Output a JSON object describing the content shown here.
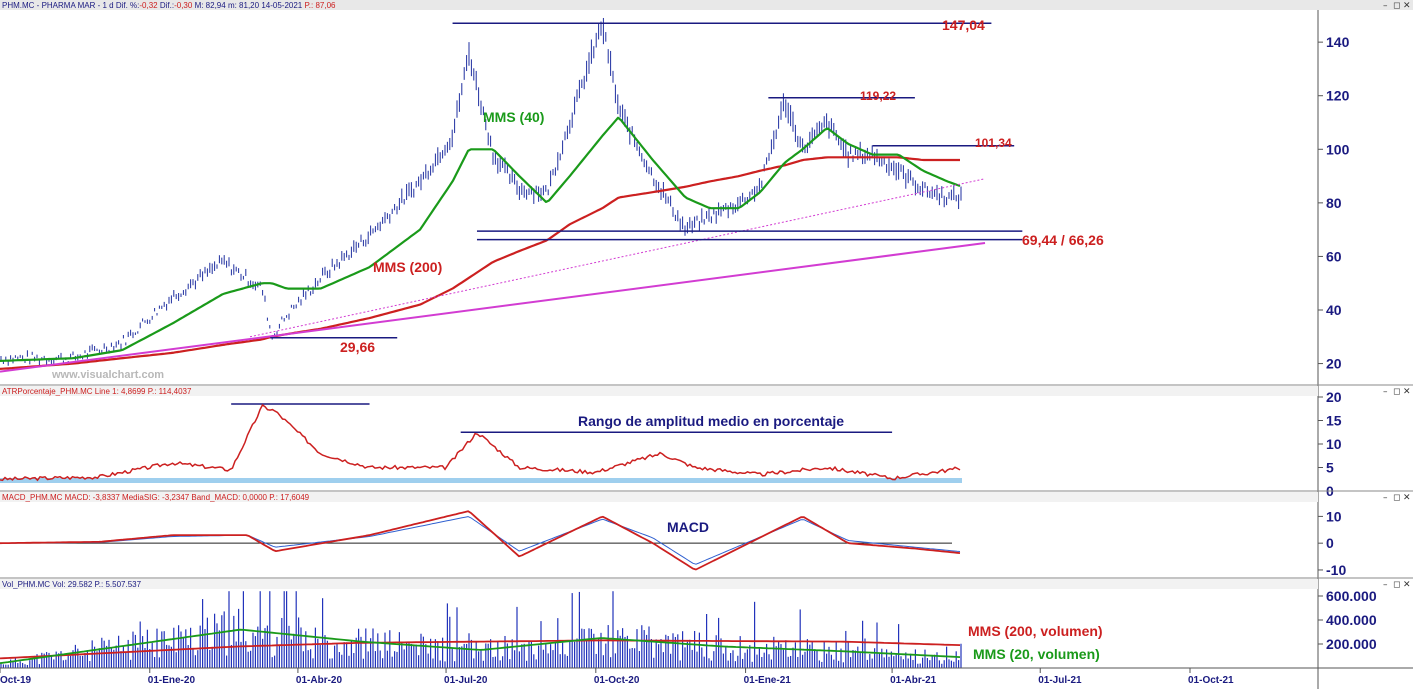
{
  "panels": {
    "price": {
      "header": {
        "symbol": "PHM.MC",
        "name": "PHARMA MAR",
        "period": "1 d",
        "dif_pct_label": "Dif. %:",
        "dif_pct": "-0,32",
        "dif_label": "Dif.:",
        "dif": "-0,30",
        "max": "M: 82,94",
        "min": "m: 81,20",
        "date": "14-05-2021",
        "last": "P.: 87,06"
      },
      "watermark": "www.visualchart.com",
      "annotations": {
        "ma40": "MMS (40)",
        "ma200": "MMS (200)",
        "high_1": "147,04",
        "high_2": "119,22",
        "high_3": "101,34",
        "low_1": "29,66",
        "support": "69,44 / 66,26"
      },
      "y_ticks": [
        "140",
        "120",
        "100",
        "80",
        "60",
        "40",
        "20"
      ]
    },
    "atr": {
      "header": "ATRPorcentaje_PHM.MC Line 1: 4,8699 P.: 114,4037",
      "annotation": "Rango de amplitud medio en porcentaje",
      "y_ticks": [
        "20",
        "15",
        "10",
        "5",
        "0"
      ]
    },
    "macd": {
      "header": "MACD_PHM.MC MACD: -3,8337 MediaSIG: -3,2347 Band_MACD: 0,0000 P.: 17,6049",
      "annotation": "MACD",
      "y_ticks": [
        "10",
        "0",
        "-10"
      ]
    },
    "volume": {
      "header": "Vol_PHM.MC Vol: 29.582 P.: 5.507.537",
      "annotations": {
        "ma200": "MMS (200, volumen)",
        "ma20": "MMS (20, volumen)"
      },
      "y_ticks": [
        "600.000",
        "400.000",
        "200.000"
      ]
    }
  },
  "x_labels": [
    "Oct-19",
    "01-Ene-20",
    "01-Abr-20",
    "01-Jul-20",
    "01-Oct-20",
    "01-Ene-21",
    "01-Abr-21",
    "01-Jul-21",
    "01-Oct-21"
  ],
  "window_controls": [
    "–",
    "◻",
    "✕"
  ],
  "colors": {
    "price_bars": "#1f2fa0",
    "ma40": "#1a9a1a",
    "ma200": "#cc2020",
    "trendline": "#d23cd2",
    "level_line": "#1a1a80",
    "annotation_red": "#cc2020",
    "annotation_green": "#1a9a1a",
    "atr_line": "#cc2020",
    "macd_line": "#cc2020",
    "signal_line": "#3060d0",
    "volume_bars": "#2233bb",
    "axis_text": "#1a1a80"
  },
  "chart_data": [
    {
      "type": "line",
      "panel": "price",
      "title": "PHM.MC - PHARMA MAR - 1 d",
      "ylim": [
        12,
        152
      ],
      "x": [
        "2019-10-01",
        "2019-11-15",
        "2019-12-15",
        "2020-01-15",
        "2020-02-15",
        "2020-03-10",
        "2020-03-16",
        "2020-03-25",
        "2020-04-15",
        "2020-05-15",
        "2020-06-15",
        "2020-07-05",
        "2020-07-15",
        "2020-07-30",
        "2020-08-15",
        "2020-09-01",
        "2020-09-15",
        "2020-10-05",
        "2020-10-15",
        "2020-11-05",
        "2020-11-25",
        "2020-12-10",
        "2020-12-28",
        "2021-01-10",
        "2021-01-25",
        "2021-02-05",
        "2021-02-20",
        "2021-03-05",
        "2021-03-20",
        "2021-04-05",
        "2021-04-20",
        "2021-05-05",
        "2021-05-14"
      ],
      "series": [
        {
          "name": "PHM.MC",
          "values": [
            22,
            22,
            28,
            45,
            58,
            48,
            30,
            38,
            52,
            68,
            88,
            105,
            136,
            98,
            85,
            84,
            110,
            147,
            115,
            90,
            70,
            75,
            80,
            86,
            118,
            100,
            110,
            98,
            98,
            92,
            85,
            82,
            82
          ]
        },
        {
          "name": "MMS (40)",
          "values": [
            21,
            22,
            25,
            35,
            46,
            50,
            50,
            48,
            48,
            56,
            70,
            88,
            100,
            100,
            90,
            80,
            90,
            105,
            112,
            96,
            82,
            78,
            78,
            84,
            95,
            100,
            108,
            102,
            98,
            98,
            92,
            88,
            86
          ]
        },
        {
          "name": "MMS (200)",
          "values": [
            18,
            20,
            22,
            24,
            27,
            29,
            30,
            31,
            33,
            37,
            42,
            48,
            52,
            58,
            62,
            66,
            72,
            78,
            82,
            84,
            86,
            88,
            90,
            92,
            94,
            96,
            97,
            97,
            97,
            97,
            96,
            96,
            96
          ]
        }
      ],
      "levels": [
        147.04,
        119.22,
        101.34,
        69.44,
        66.26,
        29.66
      ]
    },
    {
      "type": "line",
      "panel": "atr",
      "title": "ATRPorcentaje_PHM.MC",
      "ylim": [
        0,
        20
      ],
      "x": [
        "2019-10-01",
        "2019-12-01",
        "2020-01-15",
        "2020-02-20",
        "2020-03-10",
        "2020-03-18",
        "2020-04-15",
        "2020-05-15",
        "2020-07-01",
        "2020-07-20",
        "2020-08-15",
        "2020-10-01",
        "2020-11-10",
        "2020-12-01",
        "2021-01-10",
        "2021-02-20",
        "2021-04-01",
        "2021-05-14"
      ],
      "series": [
        {
          "name": "Line 1",
          "values": [
            2.5,
            3,
            6,
            4.5,
            18,
            17,
            8,
            5,
            5,
            12.5,
            5,
            4,
            8,
            5,
            3.5,
            5,
            2.7,
            4.9
          ]
        }
      ]
    },
    {
      "type": "line",
      "panel": "macd",
      "title": "MACD_PHM.MC",
      "ylim": [
        -13,
        15
      ],
      "x": [
        "2019-10-01",
        "2019-12-01",
        "2020-01-15",
        "2020-03-01",
        "2020-03-18",
        "2020-05-15",
        "2020-07-15",
        "2020-08-15",
        "2020-10-05",
        "2020-11-05",
        "2020-12-01",
        "2021-02-05",
        "2021-03-05",
        "2021-04-15",
        "2021-05-14"
      ],
      "series": [
        {
          "name": "MACD",
          "values": [
            0,
            0.5,
            3,
            3,
            -3,
            3,
            12,
            -5,
            10,
            0,
            -10,
            10,
            0,
            -2,
            -3.8
          ]
        },
        {
          "name": "MediaSIG",
          "values": [
            0,
            0.3,
            2.5,
            3,
            -1.5,
            2.5,
            10,
            -3,
            9,
            2,
            -8,
            9,
            1,
            -1.5,
            -3.2
          ]
        }
      ]
    },
    {
      "type": "bar",
      "panel": "volume",
      "title": "Vol_PHM.MC",
      "ylim": [
        0,
        650000
      ],
      "series": [
        {
          "name": "MMS (200, volumen)",
          "values": [
            80000,
            130000,
            180000,
            210000,
            220000,
            230000,
            225000,
            220000,
            190000
          ]
        },
        {
          "name": "MMS (20, volumen)",
          "values": [
            40000,
            180000,
            320000,
            220000,
            150000,
            250000,
            180000,
            140000,
            90000
          ]
        }
      ]
    }
  ]
}
